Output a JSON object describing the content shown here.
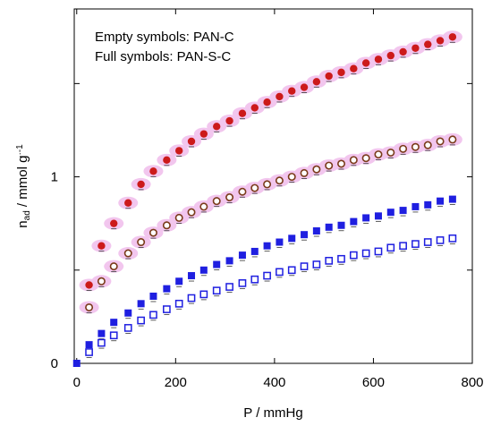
{
  "chart_data": {
    "type": "scatter",
    "title": "",
    "xlabel": "P / mmHg",
    "ylabel": {
      "prefix": "n",
      "subscript": "ad",
      "suffix": " / mmol g",
      "dot": "·",
      "superscript": "-1"
    },
    "xlim": [
      -5,
      800
    ],
    "ylim": [
      0,
      1.9
    ],
    "xticks": [
      0,
      200,
      400,
      600,
      800
    ],
    "yticks_labeled": [
      0,
      1
    ],
    "yticks_minor": [
      0.5,
      1.5
    ],
    "grid": false,
    "annotations": [
      "Empty symbols: PAN-C",
      "Full symbols: PAN-S-C"
    ],
    "colors": {
      "red": "#cc1a1a",
      "brown": "#7a3a1a",
      "blue": "#1f1fe0",
      "halo": "#f2c6ee"
    },
    "series": [
      {
        "marker": "filled-circle",
        "color": "red",
        "x": [
          25,
          50,
          75,
          104,
          130,
          155,
          182,
          207,
          232,
          257,
          283,
          309,
          335,
          360,
          385,
          410,
          435,
          460,
          485,
          510,
          535,
          560,
          585,
          610,
          635,
          660,
          685,
          710,
          735,
          760
        ],
        "y": [
          0.42,
          0.63,
          0.75,
          0.86,
          0.96,
          1.03,
          1.09,
          1.14,
          1.19,
          1.23,
          1.27,
          1.3,
          1.34,
          1.37,
          1.4,
          1.43,
          1.46,
          1.48,
          1.51,
          1.54,
          1.56,
          1.58,
          1.61,
          1.63,
          1.65,
          1.67,
          1.69,
          1.71,
          1.73,
          1.75
        ]
      },
      {
        "marker": "open-circle",
        "color": "brown",
        "x": [
          25,
          50,
          75,
          104,
          130,
          155,
          182,
          207,
          232,
          257,
          283,
          309,
          335,
          360,
          385,
          410,
          435,
          460,
          485,
          510,
          535,
          560,
          585,
          610,
          635,
          660,
          685,
          710,
          735,
          760
        ],
        "y": [
          0.3,
          0.44,
          0.52,
          0.59,
          0.65,
          0.7,
          0.74,
          0.78,
          0.81,
          0.84,
          0.87,
          0.89,
          0.92,
          0.94,
          0.96,
          0.98,
          1.0,
          1.02,
          1.04,
          1.06,
          1.07,
          1.09,
          1.1,
          1.12,
          1.13,
          1.15,
          1.16,
          1.17,
          1.19,
          1.2
        ]
      },
      {
        "marker": "filled-square",
        "color": "blue",
        "x": [
          25,
          50,
          75,
          104,
          130,
          155,
          182,
          207,
          232,
          257,
          283,
          309,
          335,
          360,
          385,
          410,
          435,
          460,
          485,
          510,
          535,
          560,
          585,
          610,
          635,
          660,
          685,
          710,
          735,
          760
        ],
        "y": [
          0.1,
          0.16,
          0.22,
          0.27,
          0.32,
          0.36,
          0.4,
          0.44,
          0.47,
          0.5,
          0.53,
          0.55,
          0.58,
          0.6,
          0.63,
          0.65,
          0.67,
          0.69,
          0.71,
          0.73,
          0.74,
          0.76,
          0.78,
          0.79,
          0.81,
          0.82,
          0.84,
          0.85,
          0.87,
          0.88
        ]
      },
      {
        "marker": "open-square",
        "color": "blue",
        "x": [
          25,
          50,
          75,
          104,
          130,
          155,
          182,
          207,
          232,
          257,
          283,
          309,
          335,
          360,
          385,
          410,
          435,
          460,
          485,
          510,
          535,
          560,
          585,
          610,
          635,
          660,
          685,
          710,
          735,
          760
        ],
        "y": [
          0.06,
          0.11,
          0.15,
          0.19,
          0.23,
          0.26,
          0.29,
          0.32,
          0.35,
          0.37,
          0.39,
          0.41,
          0.43,
          0.45,
          0.47,
          0.49,
          0.5,
          0.52,
          0.53,
          0.55,
          0.56,
          0.58,
          0.59,
          0.6,
          0.62,
          0.63,
          0.64,
          0.65,
          0.66,
          0.67
        ]
      }
    ]
  }
}
